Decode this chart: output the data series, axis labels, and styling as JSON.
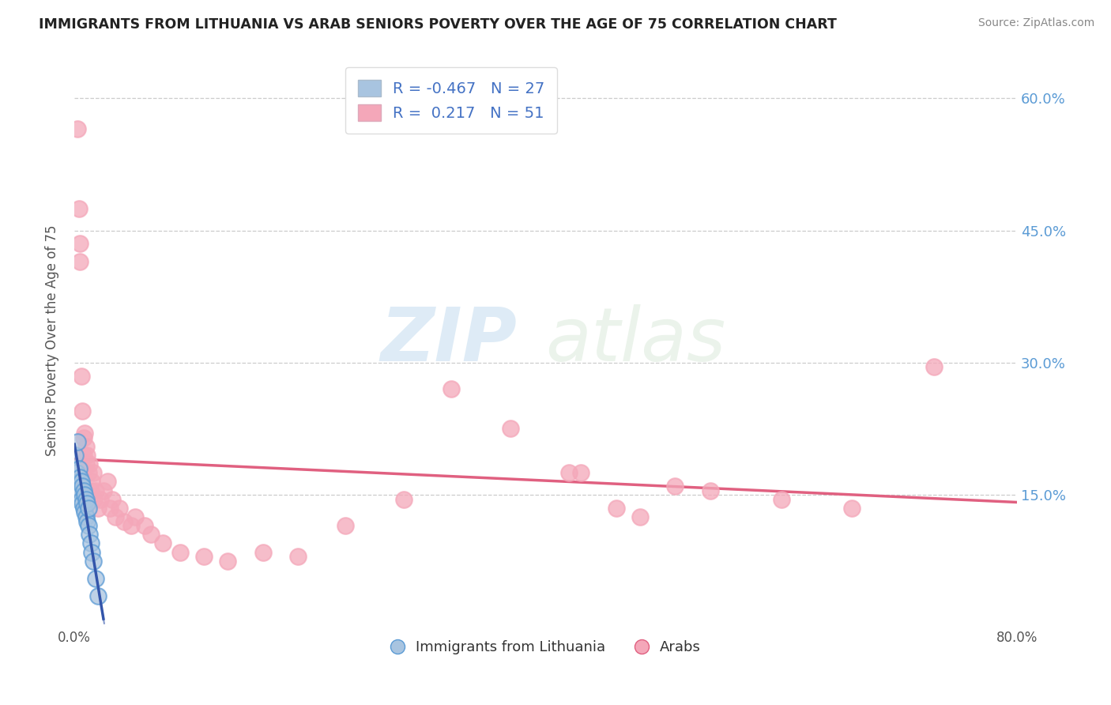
{
  "title": "IMMIGRANTS FROM LITHUANIA VS ARAB SENIORS POVERTY OVER THE AGE OF 75 CORRELATION CHART",
  "source": "Source: ZipAtlas.com",
  "ylabel": "Seniors Poverty Over the Age of 75",
  "xlabel_blue": "Immigrants from Lithuania",
  "xlabel_pink": "Arabs",
  "xlim": [
    0.0,
    0.8
  ],
  "ylim": [
    0.0,
    0.65
  ],
  "legend_R_blue": "-0.467",
  "legend_N_blue": "27",
  "legend_R_pink": "0.217",
  "legend_N_pink": "51",
  "blue_color": "#a8c4e0",
  "blue_edge_color": "#5b9bd5",
  "pink_color": "#f4a7b9",
  "pink_edge_color": "#e06080",
  "trendline_blue_color": "#3355aa",
  "trendline_pink_color": "#e06080",
  "blue_scatter": [
    [
      0.001,
      0.195
    ],
    [
      0.002,
      0.175
    ],
    [
      0.003,
      0.21
    ],
    [
      0.004,
      0.18
    ],
    [
      0.004,
      0.165
    ],
    [
      0.005,
      0.17
    ],
    [
      0.005,
      0.155
    ],
    [
      0.006,
      0.165
    ],
    [
      0.006,
      0.145
    ],
    [
      0.007,
      0.16
    ],
    [
      0.007,
      0.14
    ],
    [
      0.008,
      0.155
    ],
    [
      0.008,
      0.135
    ],
    [
      0.009,
      0.15
    ],
    [
      0.009,
      0.13
    ],
    [
      0.01,
      0.145
    ],
    [
      0.01,
      0.125
    ],
    [
      0.011,
      0.14
    ],
    [
      0.011,
      0.12
    ],
    [
      0.012,
      0.135
    ],
    [
      0.012,
      0.115
    ],
    [
      0.013,
      0.105
    ],
    [
      0.014,
      0.095
    ],
    [
      0.015,
      0.085
    ],
    [
      0.016,
      0.075
    ],
    [
      0.018,
      0.055
    ],
    [
      0.02,
      0.035
    ]
  ],
  "pink_scatter": [
    [
      0.003,
      0.565
    ],
    [
      0.004,
      0.475
    ],
    [
      0.005,
      0.435
    ],
    [
      0.005,
      0.415
    ],
    [
      0.006,
      0.285
    ],
    [
      0.007,
      0.245
    ],
    [
      0.008,
      0.215
    ],
    [
      0.008,
      0.195
    ],
    [
      0.009,
      0.22
    ],
    [
      0.01,
      0.205
    ],
    [
      0.01,
      0.185
    ],
    [
      0.011,
      0.195
    ],
    [
      0.012,
      0.175
    ],
    [
      0.013,
      0.185
    ],
    [
      0.014,
      0.155
    ],
    [
      0.015,
      0.165
    ],
    [
      0.016,
      0.175
    ],
    [
      0.017,
      0.145
    ],
    [
      0.018,
      0.155
    ],
    [
      0.02,
      0.135
    ],
    [
      0.022,
      0.145
    ],
    [
      0.025,
      0.155
    ],
    [
      0.028,
      0.165
    ],
    [
      0.03,
      0.135
    ],
    [
      0.032,
      0.145
    ],
    [
      0.035,
      0.125
    ],
    [
      0.038,
      0.135
    ],
    [
      0.042,
      0.12
    ],
    [
      0.048,
      0.115
    ],
    [
      0.052,
      0.125
    ],
    [
      0.06,
      0.115
    ],
    [
      0.065,
      0.105
    ],
    [
      0.075,
      0.095
    ],
    [
      0.09,
      0.085
    ],
    [
      0.11,
      0.08
    ],
    [
      0.13,
      0.075
    ],
    [
      0.16,
      0.085
    ],
    [
      0.19,
      0.08
    ],
    [
      0.23,
      0.115
    ],
    [
      0.28,
      0.145
    ],
    [
      0.32,
      0.27
    ],
    [
      0.37,
      0.225
    ],
    [
      0.42,
      0.175
    ],
    [
      0.43,
      0.175
    ],
    [
      0.46,
      0.135
    ],
    [
      0.48,
      0.125
    ],
    [
      0.51,
      0.16
    ],
    [
      0.54,
      0.155
    ],
    [
      0.6,
      0.145
    ],
    [
      0.66,
      0.135
    ],
    [
      0.73,
      0.295
    ]
  ],
  "watermark_zip": "ZIP",
  "watermark_atlas": "atlas",
  "background_color": "#ffffff",
  "grid_color": "#cccccc"
}
